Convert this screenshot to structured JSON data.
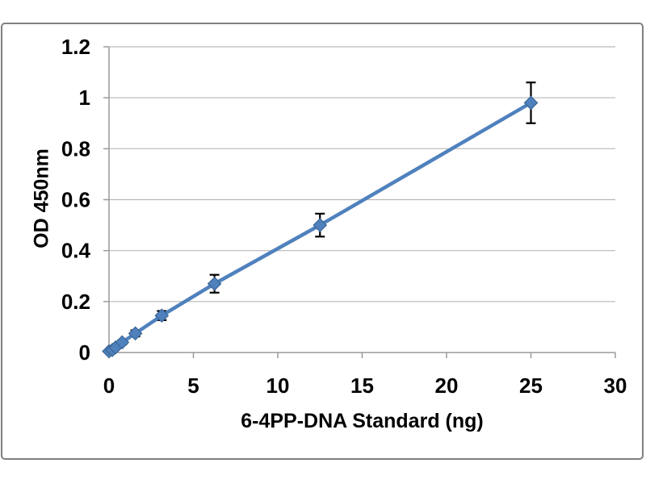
{
  "chart_data": {
    "type": "line",
    "title": "",
    "xlabel": "6-4PP-DNA Standard (ng)",
    "ylabel": "OD 450nm",
    "x": [
      0,
      0.195,
      0.39,
      0.78,
      1.56,
      3.125,
      6.25,
      12.5,
      25
    ],
    "y": [
      0.005,
      0.01,
      0.02,
      0.04,
      0.075,
      0.145,
      0.27,
      0.5,
      0.98
    ],
    "y_err": [
      0.004,
      0.005,
      0.006,
      0.008,
      0.012,
      0.018,
      0.035,
      0.045,
      0.08
    ],
    "xlim": [
      0,
      30
    ],
    "ylim": [
      0,
      1.2
    ],
    "x_ticks": [
      0,
      5,
      10,
      15,
      20,
      25,
      30
    ],
    "x_tick_labels": [
      "0",
      "5",
      "10",
      "15",
      "20",
      "25",
      "30"
    ],
    "y_ticks": [
      0,
      0.2,
      0.4,
      0.6,
      0.8,
      1,
      1.2
    ],
    "y_tick_labels": [
      "0",
      "0.2",
      "0.4",
      "0.6",
      "0.8",
      "1",
      "1.2"
    ],
    "grid": "horizontal-only",
    "legend": "none",
    "marker": "diamond",
    "error_bars": true,
    "colors": {
      "series": "#4f81bd",
      "marker_fill": "#4f81bd",
      "marker_outline": "#3a6596",
      "gridline": "#b8b8b8",
      "axis": "#9a9a9a",
      "error_bar": "#000000",
      "frame_border": "#7f7f7f",
      "text": "#000000"
    }
  }
}
